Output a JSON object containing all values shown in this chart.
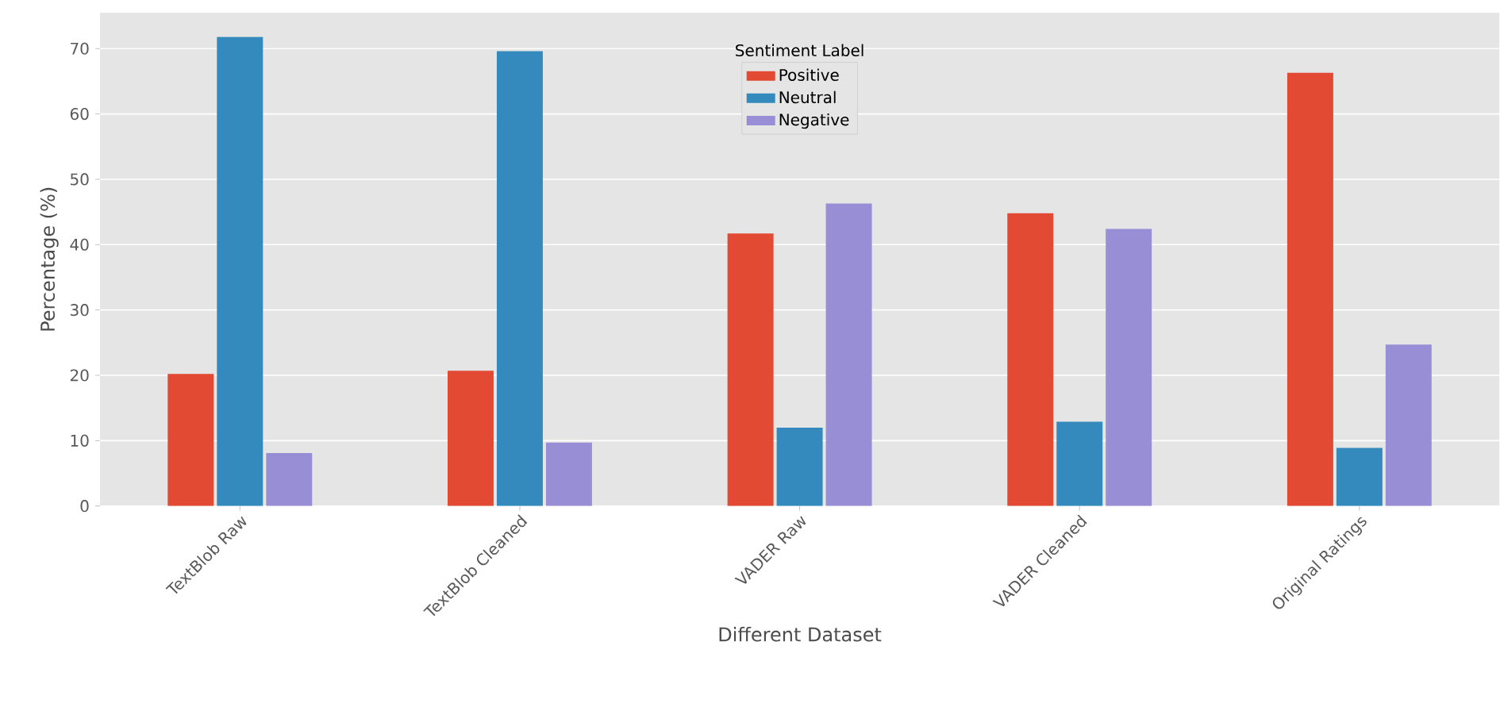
{
  "chart_data": {
    "type": "bar",
    "xlabel": "Different Dataset",
    "ylabel": "Percentage (%)",
    "legend_title": "Sentiment Label",
    "categories": [
      "TextBlob Raw",
      "TextBlob Cleaned",
      "VADER Raw",
      "VADER Cleaned",
      "Original Ratings"
    ],
    "series": [
      {
        "name": "Positive",
        "color": "#e24a33",
        "values": [
          20.2,
          20.7,
          41.7,
          44.8,
          66.3
        ]
      },
      {
        "name": "Neutral",
        "color": "#348abd",
        "values": [
          71.8,
          69.6,
          12.0,
          12.9,
          8.9
        ]
      },
      {
        "name": "Negative",
        "color": "#988ed5",
        "values": [
          8.1,
          9.7,
          46.3,
          42.4,
          24.7
        ]
      }
    ],
    "ylim": [
      0,
      75.5
    ],
    "yticks": [
      0,
      10,
      20,
      30,
      40,
      50,
      60,
      70
    ],
    "grid": "y",
    "legend": "top"
  }
}
